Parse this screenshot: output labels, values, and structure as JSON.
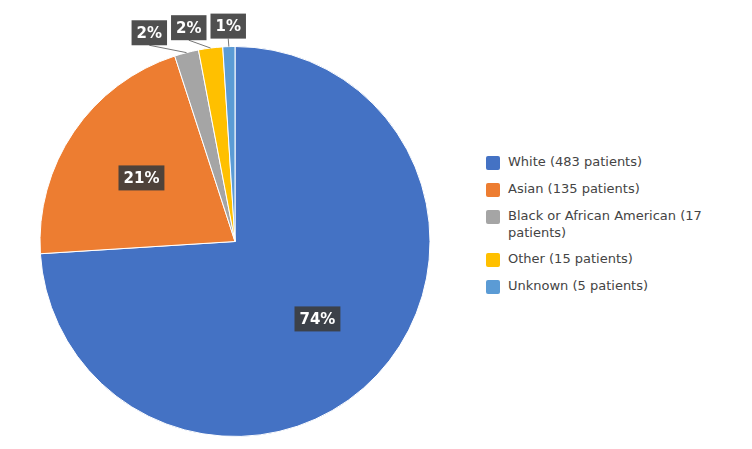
{
  "chart_data": {
    "type": "pie",
    "categories": [
      "White (483 patients)",
      "Asian (135 patients)",
      "Black or African American (17\n patients)",
      "Other (15 patients)",
      "Unknown (5 patients)"
    ],
    "values": [
      74,
      21,
      2,
      2,
      1
    ],
    "value_labels": [
      "74%",
      "21%",
      "2%",
      "2%",
      "1%"
    ],
    "colors": [
      "#4472C4",
      "#ED7D31",
      "#A5A5A5",
      "#FFC000",
      "#5B9BD5"
    ],
    "data_labels": true,
    "legend": "right"
  }
}
